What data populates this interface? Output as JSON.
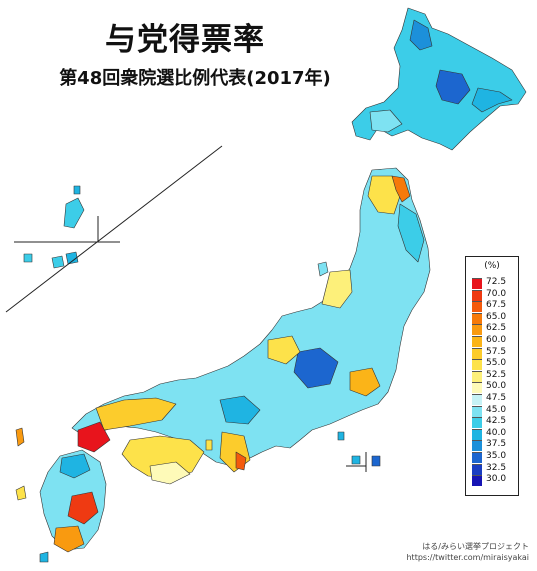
{
  "title": "与党得票率",
  "subtitle": "第48回衆院選比例代表(2017年)",
  "legend": {
    "unit": "(%)",
    "items": [
      {
        "label": "72.5",
        "color": "#e8141c"
      },
      {
        "label": "70.0",
        "color": "#ef3a12"
      },
      {
        "label": "67.5",
        "color": "#f45a0c"
      },
      {
        "label": "65.0",
        "color": "#f67a0a"
      },
      {
        "label": "62.5",
        "color": "#f99a10"
      },
      {
        "label": "60.0",
        "color": "#fbb418"
      },
      {
        "label": "57.5",
        "color": "#fccc2c"
      },
      {
        "label": "55.0",
        "color": "#fde24a"
      },
      {
        "label": "52.5",
        "color": "#fdf07a"
      },
      {
        "label": "50.0",
        "color": "#fefab8"
      },
      {
        "label": "47.5",
        "color": "#c6f2f6"
      },
      {
        "label": "45.0",
        "color": "#7ee2f2"
      },
      {
        "label": "42.5",
        "color": "#3ccde8"
      },
      {
        "label": "40.0",
        "color": "#1fb4e2"
      },
      {
        "label": "37.5",
        "color": "#1c90da"
      },
      {
        "label": "35.0",
        "color": "#1c66cf"
      },
      {
        "label": "32.5",
        "color": "#1a3ec2"
      },
      {
        "label": "30.0",
        "color": "#1614b4"
      }
    ]
  },
  "credit": {
    "line1": "はる/みらい選挙プロジェクト",
    "line2": "https://twitter.com/miraisyakai"
  }
}
